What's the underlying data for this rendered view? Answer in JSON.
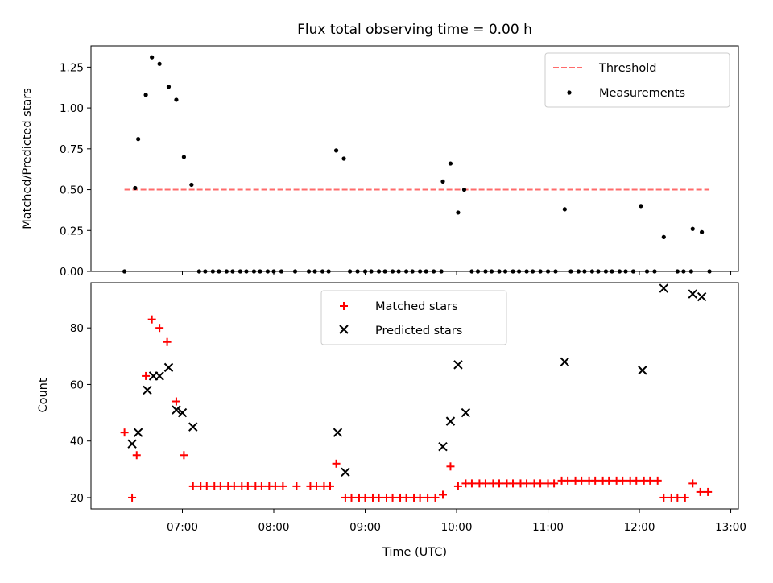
{
  "chart_data": [
    {
      "type": "scatter",
      "title": "Flux total observing time = 0.00 h",
      "xlabel": "",
      "ylabel": "Matched/Predicted stars",
      "xlim": [
        "06:00",
        "13:05"
      ],
      "ylim": [
        0,
        1.38
      ],
      "yticks": [
        "0.00",
        "0.25",
        "0.50",
        "0.75",
        "1.00",
        "1.25"
      ],
      "grid": false,
      "legend_position": "top-right",
      "threshold": {
        "name": "Threshold",
        "value": 0.5,
        "x": [
          "06:22",
          "12:46"
        ],
        "color": "#ff6b6b"
      },
      "series": [
        {
          "name": "Measurements",
          "color": "#000000",
          "points": [
            [
              "06:22",
              0.0
            ],
            [
              "06:29",
              0.51
            ],
            [
              "06:31",
              0.81
            ],
            [
              "06:36",
              1.08
            ],
            [
              "06:40",
              1.31
            ],
            [
              "06:45",
              1.27
            ],
            [
              "06:51",
              1.13
            ],
            [
              "06:56",
              1.05
            ],
            [
              "07:01",
              0.7
            ],
            [
              "07:06",
              0.53
            ],
            [
              "07:11",
              0.0
            ],
            [
              "07:15",
              0.0
            ],
            [
              "07:20",
              0.0
            ],
            [
              "07:24",
              0.0
            ],
            [
              "07:29",
              0.0
            ],
            [
              "07:33",
              0.0
            ],
            [
              "07:38",
              0.0
            ],
            [
              "07:42",
              0.0
            ],
            [
              "07:47",
              0.0
            ],
            [
              "07:51",
              0.0
            ],
            [
              "07:56",
              0.0
            ],
            [
              "08:00",
              0.0
            ],
            [
              "08:05",
              0.0
            ],
            [
              "08:14",
              0.0
            ],
            [
              "08:23",
              0.0
            ],
            [
              "08:27",
              0.0
            ],
            [
              "08:32",
              0.0
            ],
            [
              "08:36",
              0.0
            ],
            [
              "08:41",
              0.74
            ],
            [
              "08:46",
              0.69
            ],
            [
              "08:50",
              0.0
            ],
            [
              "08:55",
              0.0
            ],
            [
              "09:00",
              0.0
            ],
            [
              "09:04",
              0.0
            ],
            [
              "09:09",
              0.0
            ],
            [
              "09:13",
              0.0
            ],
            [
              "09:18",
              0.0
            ],
            [
              "09:22",
              0.0
            ],
            [
              "09:27",
              0.0
            ],
            [
              "09:31",
              0.0
            ],
            [
              "09:36",
              0.0
            ],
            [
              "09:40",
              0.0
            ],
            [
              "09:45",
              0.0
            ],
            [
              "09:50",
              0.0
            ],
            [
              "09:51",
              0.55
            ],
            [
              "09:56",
              0.66
            ],
            [
              "10:01",
              0.36
            ],
            [
              "10:05",
              0.5
            ],
            [
              "10:10",
              0.0
            ],
            [
              "10:14",
              0.0
            ],
            [
              "10:19",
              0.0
            ],
            [
              "10:23",
              0.0
            ],
            [
              "10:28",
              0.0
            ],
            [
              "10:32",
              0.0
            ],
            [
              "10:37",
              0.0
            ],
            [
              "10:41",
              0.0
            ],
            [
              "10:46",
              0.0
            ],
            [
              "10:50",
              0.0
            ],
            [
              "10:55",
              0.0
            ],
            [
              "11:00",
              0.0
            ],
            [
              "11:05",
              0.0
            ],
            [
              "11:11",
              0.38
            ],
            [
              "11:15",
              0.0
            ],
            [
              "11:20",
              0.0
            ],
            [
              "11:24",
              0.0
            ],
            [
              "11:29",
              0.0
            ],
            [
              "11:33",
              0.0
            ],
            [
              "11:38",
              0.0
            ],
            [
              "11:42",
              0.0
            ],
            [
              "11:47",
              0.0
            ],
            [
              "11:51",
              0.0
            ],
            [
              "11:56",
              0.0
            ],
            [
              "12:01",
              0.4
            ],
            [
              "12:05",
              0.0
            ],
            [
              "12:10",
              0.0
            ],
            [
              "12:16",
              0.21
            ],
            [
              "12:25",
              0.0
            ],
            [
              "12:29",
              0.0
            ],
            [
              "12:34",
              0.0
            ],
            [
              "12:35",
              0.26
            ],
            [
              "12:41",
              0.24
            ],
            [
              "12:46",
              0.0
            ]
          ]
        }
      ]
    },
    {
      "type": "scatter",
      "title": "",
      "xlabel": "Time (UTC)",
      "ylabel": "Count",
      "xlim": [
        "06:00",
        "13:05"
      ],
      "ylim": [
        16,
        96
      ],
      "xticks": [
        "07:00",
        "08:00",
        "09:00",
        "10:00",
        "11:00",
        "12:00",
        "13:00"
      ],
      "yticks": [
        "20",
        "40",
        "60",
        "80"
      ],
      "grid": false,
      "legend_position": "top-center",
      "series": [
        {
          "name": "Matched stars",
          "marker": "+",
          "color": "#ff0000",
          "points": [
            [
              "06:22",
              43
            ],
            [
              "06:27",
              20
            ],
            [
              "06:30",
              35
            ],
            [
              "06:36",
              63
            ],
            [
              "06:40",
              83
            ],
            [
              "06:45",
              80
            ],
            [
              "06:50",
              75
            ],
            [
              "06:56",
              54
            ],
            [
              "07:01",
              35
            ],
            [
              "07:07",
              24
            ],
            [
              "07:12",
              24
            ],
            [
              "07:16",
              24
            ],
            [
              "07:21",
              24
            ],
            [
              "07:25",
              24
            ],
            [
              "07:30",
              24
            ],
            [
              "07:34",
              24
            ],
            [
              "07:39",
              24
            ],
            [
              "07:43",
              24
            ],
            [
              "07:48",
              24
            ],
            [
              "07:52",
              24
            ],
            [
              "07:57",
              24
            ],
            [
              "08:01",
              24
            ],
            [
              "08:06",
              24
            ],
            [
              "08:15",
              24
            ],
            [
              "08:24",
              24
            ],
            [
              "08:28",
              24
            ],
            [
              "08:33",
              24
            ],
            [
              "08:37",
              24
            ],
            [
              "08:41",
              32
            ],
            [
              "08:47",
              20
            ],
            [
              "08:51",
              20
            ],
            [
              "08:56",
              20
            ],
            [
              "09:00",
              20
            ],
            [
              "09:05",
              20
            ],
            [
              "09:09",
              20
            ],
            [
              "09:14",
              20
            ],
            [
              "09:18",
              20
            ],
            [
              "09:23",
              20
            ],
            [
              "09:27",
              20
            ],
            [
              "09:32",
              20
            ],
            [
              "09:36",
              20
            ],
            [
              "09:41",
              20
            ],
            [
              "09:46",
              20
            ],
            [
              "09:51",
              21
            ],
            [
              "09:56",
              31
            ],
            [
              "10:01",
              24
            ],
            [
              "10:06",
              25
            ],
            [
              "10:10",
              25
            ],
            [
              "10:15",
              25
            ],
            [
              "10:19",
              25
            ],
            [
              "10:24",
              25
            ],
            [
              "10:28",
              25
            ],
            [
              "10:33",
              25
            ],
            [
              "10:37",
              25
            ],
            [
              "10:42",
              25
            ],
            [
              "10:46",
              25
            ],
            [
              "10:51",
              25
            ],
            [
              "10:55",
              25
            ],
            [
              "11:00",
              25
            ],
            [
              "11:04",
              25
            ],
            [
              "11:09",
              26
            ],
            [
              "11:13",
              26
            ],
            [
              "11:18",
              26
            ],
            [
              "11:22",
              26
            ],
            [
              "11:27",
              26
            ],
            [
              "11:31",
              26
            ],
            [
              "11:36",
              26
            ],
            [
              "11:40",
              26
            ],
            [
              "11:45",
              26
            ],
            [
              "11:49",
              26
            ],
            [
              "11:54",
              26
            ],
            [
              "11:58",
              26
            ],
            [
              "12:03",
              26
            ],
            [
              "12:07",
              26
            ],
            [
              "12:12",
              26
            ],
            [
              "12:16",
              20
            ],
            [
              "12:21",
              20
            ],
            [
              "12:25",
              20
            ],
            [
              "12:30",
              20
            ],
            [
              "12:35",
              25
            ],
            [
              "12:40",
              22
            ],
            [
              "12:45",
              22
            ]
          ]
        },
        {
          "name": "Predicted stars",
          "marker": "x",
          "color": "#000000",
          "points": [
            [
              "06:27",
              39
            ],
            [
              "06:31",
              43
            ],
            [
              "06:37",
              58
            ],
            [
              "06:41",
              63
            ],
            [
              "06:45",
              63
            ],
            [
              "06:51",
              66
            ],
            [
              "06:56",
              51
            ],
            [
              "07:00",
              50
            ],
            [
              "07:07",
              45
            ],
            [
              "08:42",
              43
            ],
            [
              "08:47",
              29
            ],
            [
              "09:51",
              38
            ],
            [
              "09:56",
              47
            ],
            [
              "10:01",
              67
            ],
            [
              "10:06",
              50
            ],
            [
              "11:11",
              68
            ],
            [
              "12:02",
              65
            ],
            [
              "12:16",
              94
            ],
            [
              "12:35",
              92
            ],
            [
              "12:41",
              91
            ]
          ]
        }
      ]
    }
  ]
}
